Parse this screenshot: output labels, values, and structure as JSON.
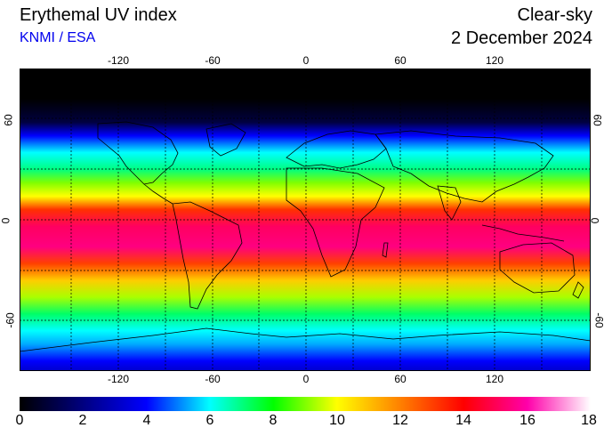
{
  "header": {
    "title": "Erythemal UV index",
    "source": "KNMI / ESA",
    "mode": "Clear-sky",
    "date": "2 December 2024"
  },
  "axes": {
    "longitude_ticks": [
      "-120",
      "-60",
      "0",
      "60",
      "120"
    ],
    "latitude_ticks": [
      "60",
      "0",
      "-60"
    ]
  },
  "colorbar": {
    "labels": [
      "0",
      "2",
      "4",
      "6",
      "8",
      "10",
      "12",
      "14",
      "16",
      "18"
    ],
    "colors": [
      "#000000",
      "#000080",
      "#0000ff",
      "#00ffff",
      "#00ff00",
      "#ffff00",
      "#ff8000",
      "#ff0000",
      "#ff00aa",
      "#ffffff"
    ]
  },
  "map_bands": [
    {
      "lat": 90,
      "color": "#000000"
    },
    {
      "lat": 72,
      "color": "#000000"
    },
    {
      "lat": 58,
      "color": "#000040"
    },
    {
      "lat": 50,
      "color": "#0000ff"
    },
    {
      "lat": 40,
      "color": "#00ffff"
    },
    {
      "lat": 30,
      "color": "#00ff80"
    },
    {
      "lat": 22,
      "color": "#80ff00"
    },
    {
      "lat": 14,
      "color": "#ffff00"
    },
    {
      "lat": 6,
      "color": "#ff3000"
    },
    {
      "lat": -4,
      "color": "#ff0060"
    },
    {
      "lat": -16,
      "color": "#ff0080"
    },
    {
      "lat": -26,
      "color": "#ff4000"
    },
    {
      "lat": -36,
      "color": "#ffcc00"
    },
    {
      "lat": -46,
      "color": "#aaff00"
    },
    {
      "lat": -56,
      "color": "#00ff66"
    },
    {
      "lat": -66,
      "color": "#00ffff"
    },
    {
      "lat": -74,
      "color": "#00aaff"
    },
    {
      "lat": -84,
      "color": "#0000ff"
    },
    {
      "lat": -90,
      "color": "#0000cc"
    }
  ]
}
